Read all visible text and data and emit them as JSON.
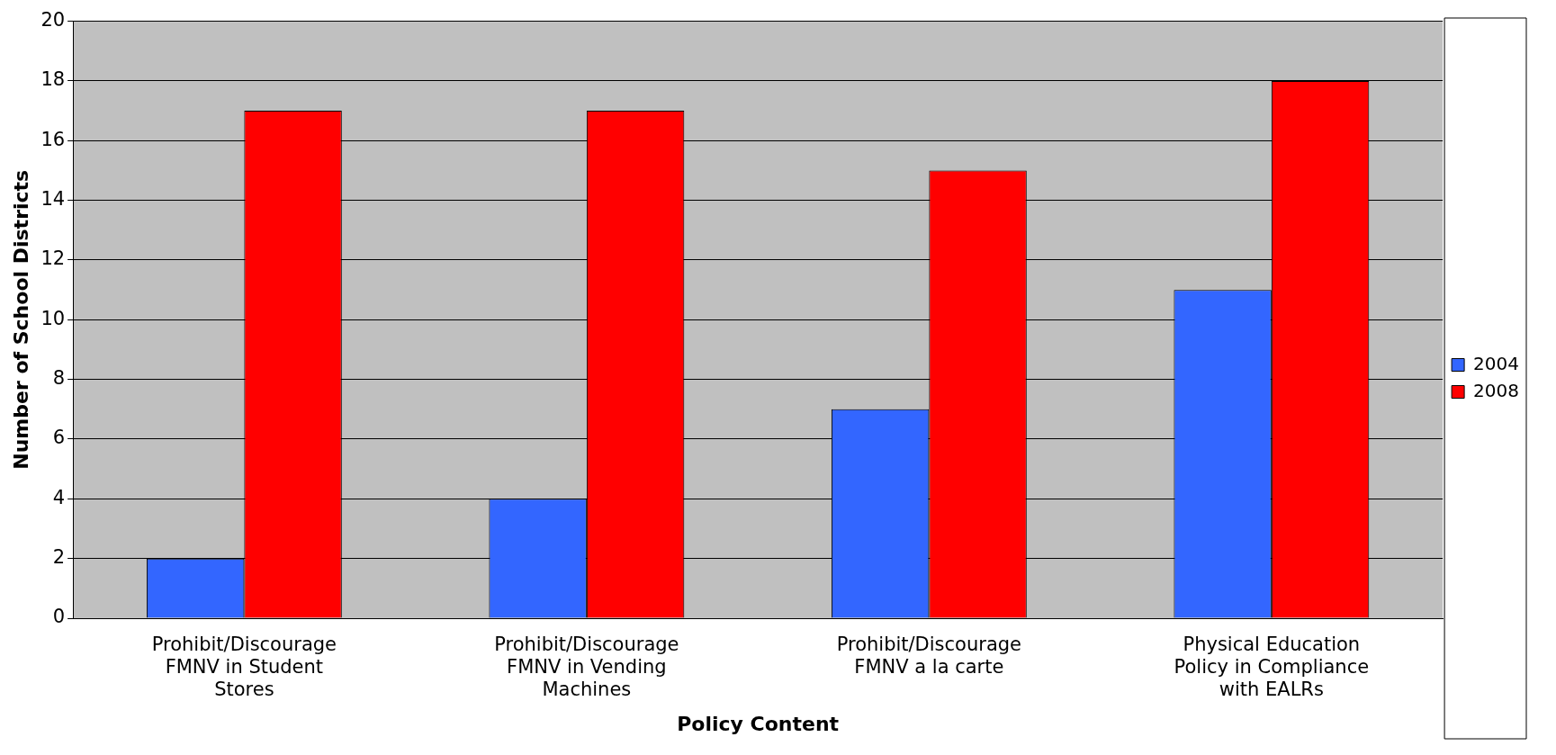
{
  "chart_data": {
    "type": "bar",
    "xlabel": "Policy Content",
    "ylabel": "Number of School Districts",
    "categories": [
      "Prohibit/Discourage FMNV in Student Stores",
      "Prohibit/Discourage FMNV in Vending Machines",
      "Prohibit/Discourage FMNV a la carte",
      "Physical Education Policy in Compliance with EALRs"
    ],
    "series": [
      {
        "name": "2004",
        "color": "#3366ff",
        "values": [
          2,
          4,
          7,
          11
        ]
      },
      {
        "name": "2008",
        "color": "#ff0000",
        "values": [
          17,
          17,
          15,
          18
        ]
      }
    ],
    "ylim": [
      0,
      20
    ],
    "yticks": [
      0,
      2,
      4,
      6,
      8,
      10,
      12,
      14,
      16,
      18,
      20
    ],
    "grid": "y",
    "legend": "right"
  }
}
